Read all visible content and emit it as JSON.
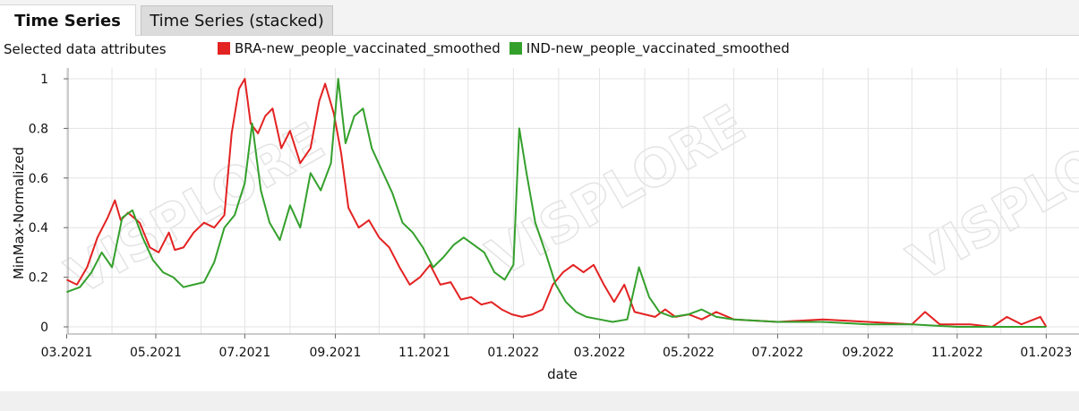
{
  "tabs": [
    {
      "label": "Time Series",
      "active": true
    },
    {
      "label": "Time Series (stacked)",
      "active": false
    }
  ],
  "attr_label": "Selected data attributes",
  "watermark": "VISPLORE",
  "chart_data": {
    "type": "line",
    "xlabel": "date",
    "ylabel": "MinMax-Normalized",
    "ylim": [
      0,
      1
    ],
    "xlim": [
      "2021-02-25",
      "2023-01-02"
    ],
    "x_ticks": [
      "2021-03-01",
      "2021-05-01",
      "2021-07-01",
      "2021-09-01",
      "2021-11-01",
      "2022-01-01",
      "2022-03-01",
      "2022-05-01",
      "2022-07-01",
      "2022-09-01",
      "2022-11-01",
      "2023-01-01"
    ],
    "x_tick_labels": [
      "03.2021",
      "05.2021",
      "07.2021",
      "09.2021",
      "11.2021",
      "01.2022",
      "03.2022",
      "05.2022",
      "07.2022",
      "09.2022",
      "11.2022",
      "01.2023"
    ],
    "y_ticks": [
      0,
      0.2,
      0.4,
      0.6,
      0.8,
      1
    ],
    "y_tick_labels": [
      "0",
      "0.2",
      "0.4",
      "0.6",
      "0.8",
      "1"
    ],
    "grid": true,
    "legend_position": "top",
    "series": [
      {
        "name": "BRA-new_people_vaccinated_smoothed",
        "color": "#e32222",
        "points": [
          [
            "2021-03-01",
            0.19
          ],
          [
            "2021-03-08",
            0.17
          ],
          [
            "2021-03-15",
            0.24
          ],
          [
            "2021-03-22",
            0.36
          ],
          [
            "2021-03-29",
            0.44
          ],
          [
            "2021-04-03",
            0.51
          ],
          [
            "2021-04-07",
            0.43
          ],
          [
            "2021-04-12",
            0.46
          ],
          [
            "2021-04-20",
            0.42
          ],
          [
            "2021-04-27",
            0.32
          ],
          [
            "2021-05-03",
            0.3
          ],
          [
            "2021-05-10",
            0.38
          ],
          [
            "2021-05-14",
            0.31
          ],
          [
            "2021-05-20",
            0.32
          ],
          [
            "2021-05-27",
            0.38
          ],
          [
            "2021-06-03",
            0.42
          ],
          [
            "2021-06-10",
            0.4
          ],
          [
            "2021-06-17",
            0.45
          ],
          [
            "2021-06-22",
            0.78
          ],
          [
            "2021-06-27",
            0.96
          ],
          [
            "2021-07-01",
            1.0
          ],
          [
            "2021-07-05",
            0.82
          ],
          [
            "2021-07-10",
            0.78
          ],
          [
            "2021-07-15",
            0.85
          ],
          [
            "2021-07-20",
            0.88
          ],
          [
            "2021-07-26",
            0.72
          ],
          [
            "2021-08-01",
            0.79
          ],
          [
            "2021-08-08",
            0.66
          ],
          [
            "2021-08-15",
            0.72
          ],
          [
            "2021-08-21",
            0.91
          ],
          [
            "2021-08-25",
            0.98
          ],
          [
            "2021-08-31",
            0.86
          ],
          [
            "2021-09-05",
            0.7
          ],
          [
            "2021-09-10",
            0.48
          ],
          [
            "2021-09-17",
            0.4
          ],
          [
            "2021-09-24",
            0.43
          ],
          [
            "2021-10-01",
            0.36
          ],
          [
            "2021-10-08",
            0.32
          ],
          [
            "2021-10-15",
            0.24
          ],
          [
            "2021-10-22",
            0.17
          ],
          [
            "2021-10-29",
            0.2
          ],
          [
            "2021-11-05",
            0.25
          ],
          [
            "2021-11-12",
            0.17
          ],
          [
            "2021-11-19",
            0.18
          ],
          [
            "2021-11-26",
            0.11
          ],
          [
            "2021-12-03",
            0.12
          ],
          [
            "2021-12-10",
            0.09
          ],
          [
            "2021-12-17",
            0.1
          ],
          [
            "2021-12-24",
            0.07
          ],
          [
            "2021-12-31",
            0.05
          ],
          [
            "2022-01-07",
            0.04
          ],
          [
            "2022-01-14",
            0.05
          ],
          [
            "2022-01-21",
            0.07
          ],
          [
            "2022-01-28",
            0.17
          ],
          [
            "2022-02-04",
            0.22
          ],
          [
            "2022-02-11",
            0.25
          ],
          [
            "2022-02-18",
            0.22
          ],
          [
            "2022-02-25",
            0.25
          ],
          [
            "2022-03-04",
            0.17
          ],
          [
            "2022-03-11",
            0.1
          ],
          [
            "2022-03-18",
            0.17
          ],
          [
            "2022-03-25",
            0.06
          ],
          [
            "2022-04-01",
            0.05
          ],
          [
            "2022-04-08",
            0.04
          ],
          [
            "2022-04-15",
            0.07
          ],
          [
            "2022-04-22",
            0.04
          ],
          [
            "2022-05-01",
            0.05
          ],
          [
            "2022-05-10",
            0.03
          ],
          [
            "2022-05-20",
            0.06
          ],
          [
            "2022-06-01",
            0.03
          ],
          [
            "2022-07-01",
            0.02
          ],
          [
            "2022-08-01",
            0.03
          ],
          [
            "2022-09-01",
            0.02
          ],
          [
            "2022-10-01",
            0.01
          ],
          [
            "2022-10-10",
            0.06
          ],
          [
            "2022-10-20",
            0.01
          ],
          [
            "2022-11-10",
            0.01
          ],
          [
            "2022-11-25",
            0.0
          ],
          [
            "2022-12-05",
            0.04
          ],
          [
            "2022-12-15",
            0.01
          ],
          [
            "2022-12-28",
            0.04
          ],
          [
            "2023-01-01",
            0.0
          ]
        ]
      },
      {
        "name": "IND-new_people_vaccinated_smoothed",
        "color": "#34a02c",
        "points": [
          [
            "2021-03-01",
            0.14
          ],
          [
            "2021-03-10",
            0.16
          ],
          [
            "2021-03-18",
            0.22
          ],
          [
            "2021-03-25",
            0.3
          ],
          [
            "2021-04-01",
            0.24
          ],
          [
            "2021-04-08",
            0.44
          ],
          [
            "2021-04-15",
            0.47
          ],
          [
            "2021-04-22",
            0.36
          ],
          [
            "2021-04-29",
            0.27
          ],
          [
            "2021-05-06",
            0.22
          ],
          [
            "2021-05-13",
            0.2
          ],
          [
            "2021-05-20",
            0.16
          ],
          [
            "2021-05-27",
            0.17
          ],
          [
            "2021-06-03",
            0.18
          ],
          [
            "2021-06-10",
            0.26
          ],
          [
            "2021-06-17",
            0.4
          ],
          [
            "2021-06-24",
            0.45
          ],
          [
            "2021-07-01",
            0.58
          ],
          [
            "2021-07-06",
            0.82
          ],
          [
            "2021-07-12",
            0.55
          ],
          [
            "2021-07-18",
            0.42
          ],
          [
            "2021-07-25",
            0.35
          ],
          [
            "2021-08-01",
            0.49
          ],
          [
            "2021-08-08",
            0.4
          ],
          [
            "2021-08-15",
            0.62
          ],
          [
            "2021-08-22",
            0.55
          ],
          [
            "2021-08-29",
            0.66
          ],
          [
            "2021-09-03",
            1.0
          ],
          [
            "2021-09-08",
            0.74
          ],
          [
            "2021-09-14",
            0.85
          ],
          [
            "2021-09-20",
            0.88
          ],
          [
            "2021-09-26",
            0.72
          ],
          [
            "2021-10-03",
            0.63
          ],
          [
            "2021-10-10",
            0.54
          ],
          [
            "2021-10-17",
            0.42
          ],
          [
            "2021-10-24",
            0.38
          ],
          [
            "2021-10-31",
            0.32
          ],
          [
            "2021-11-07",
            0.24
          ],
          [
            "2021-11-14",
            0.28
          ],
          [
            "2021-11-21",
            0.33
          ],
          [
            "2021-11-28",
            0.36
          ],
          [
            "2021-12-05",
            0.33
          ],
          [
            "2021-12-12",
            0.3
          ],
          [
            "2021-12-19",
            0.22
          ],
          [
            "2021-12-26",
            0.19
          ],
          [
            "2022-01-01",
            0.25
          ],
          [
            "2022-01-05",
            0.8
          ],
          [
            "2022-01-10",
            0.62
          ],
          [
            "2022-01-16",
            0.42
          ],
          [
            "2022-01-23",
            0.3
          ],
          [
            "2022-01-30",
            0.17
          ],
          [
            "2022-02-06",
            0.1
          ],
          [
            "2022-02-13",
            0.06
          ],
          [
            "2022-02-20",
            0.04
          ],
          [
            "2022-03-01",
            0.03
          ],
          [
            "2022-03-10",
            0.02
          ],
          [
            "2022-03-20",
            0.03
          ],
          [
            "2022-03-28",
            0.24
          ],
          [
            "2022-04-04",
            0.12
          ],
          [
            "2022-04-11",
            0.06
          ],
          [
            "2022-04-20",
            0.04
          ],
          [
            "2022-05-01",
            0.05
          ],
          [
            "2022-05-10",
            0.07
          ],
          [
            "2022-05-20",
            0.04
          ],
          [
            "2022-06-01",
            0.03
          ],
          [
            "2022-07-01",
            0.02
          ],
          [
            "2022-08-01",
            0.02
          ],
          [
            "2022-09-01",
            0.01
          ],
          [
            "2022-10-01",
            0.01
          ],
          [
            "2022-11-01",
            0.0
          ],
          [
            "2022-12-01",
            0.0
          ],
          [
            "2023-01-01",
            0.0
          ]
        ]
      }
    ]
  }
}
